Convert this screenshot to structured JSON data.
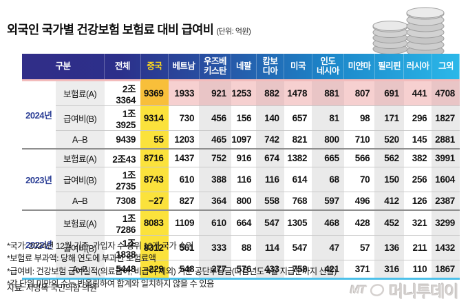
{
  "title": "외국인 국가별 건강보험 보험료 대비 급여비",
  "unit_label": "(단위: 억원)",
  "table": {
    "col_headers": [
      "구분",
      "전체",
      "중국",
      "베트남",
      "우즈베\n키스탄",
      "네팔",
      "캄보\n디아",
      "미국",
      "인도\n네시아",
      "미얀마",
      "필리핀",
      "러시아",
      "그외"
    ],
    "row_labels": [
      "보험료(A)",
      "급여비(B)",
      "A–B"
    ],
    "groups": [
      {
        "year": "2024년",
        "rows": [
          [
            "2조3364",
            "9369",
            "1933",
            "921",
            "1253",
            "882",
            "1478",
            "881",
            "807",
            "691",
            "441",
            "4708"
          ],
          [
            "1조3925",
            "9314",
            "730",
            "456",
            "156",
            "140",
            "657",
            "81",
            "98",
            "171",
            "296",
            "1827"
          ],
          [
            "9439",
            "55",
            "1203",
            "465",
            "1097",
            "742",
            "821",
            "800",
            "710",
            "520",
            "145",
            "2881"
          ]
        ]
      },
      {
        "year": "2023년",
        "rows": [
          [
            "2조43",
            "8716",
            "1437",
            "752",
            "916",
            "674",
            "1382",
            "665",
            "566",
            "562",
            "382",
            "3991"
          ],
          [
            "1조2735",
            "8743",
            "610",
            "388",
            "116",
            "116",
            "614",
            "68",
            "70",
            "150",
            "256",
            "1604"
          ],
          [
            "7308",
            "−27",
            "827",
            "364",
            "800",
            "558",
            "768",
            "597",
            "496",
            "412",
            "126",
            "2387"
          ]
        ]
      },
      {
        "year": "2022년",
        "rows": [
          [
            "1조7286",
            "8083",
            "1109",
            "610",
            "664",
            "547",
            "1305",
            "468",
            "428",
            "452",
            "321",
            "3299"
          ],
          [
            "1조1838",
            "8312",
            "561",
            "333",
            "88",
            "114",
            "547",
            "47",
            "57",
            "136",
            "211",
            "1432"
          ],
          [
            "5448",
            "−229",
            "548",
            "277",
            "576",
            "433",
            "758",
            "421",
            "371",
            "316",
            "110",
            "1867"
          ]
        ]
      }
    ]
  },
  "footnotes": [
    "*국가: 2024년 12월 기준, 가입자 수 상위 10개 국가 순임",
    "*보험료 부과액: 당해 연도에 부과한 보험료액",
    "*급여비: 건강보험 급여실적(의료급여, 비급여 제외) 기준 공단부담금(다음년도 4월 지급분까지 산출)",
    "*각 단위 미만의 수는 반올림하여 합계와 일치하지 않을 수 있음"
  ],
  "source": "자료: 서명옥 국민의힘 의원",
  "logo": {
    "mt": "MT",
    "name": "머니투데이"
  },
  "colors": {
    "header_navy": "#2c2e87",
    "header_cyan": "#2bb8e9",
    "china_header_text": "#ffd91c",
    "china_column_yellow": "#fbe23c",
    "china_pink_overlap_orange": "#f8bf3a",
    "premium_row_pink": "#f6d0d0",
    "stripe_gray": "#eaeaea",
    "label_bg": "#ededed",
    "year_text": "#2c3f96",
    "bottom_line_cyan": "#4cc0e9"
  },
  "chart_data": {
    "type": "table",
    "title": "외국인 국가별 건강보험 보험료 대비 급여비",
    "unit": "억원",
    "columns": [
      "전체",
      "중국",
      "베트남",
      "우즈베키스탄",
      "네팔",
      "캄보디아",
      "미국",
      "인도네시아",
      "미얀마",
      "필리핀",
      "러시아",
      "그외"
    ],
    "rows": [
      {
        "year": "2024년",
        "metric": "보험료(A)",
        "values": [
          "2조3364",
          9369,
          1933,
          921,
          1253,
          882,
          1478,
          881,
          807,
          691,
          441,
          4708
        ]
      },
      {
        "year": "2024년",
        "metric": "급여비(B)",
        "values": [
          "1조3925",
          9314,
          730,
          456,
          156,
          140,
          657,
          81,
          98,
          171,
          296,
          1827
        ]
      },
      {
        "year": "2024년",
        "metric": "A–B",
        "values": [
          9439,
          55,
          1203,
          465,
          1097,
          742,
          821,
          800,
          710,
          520,
          145,
          2881
        ]
      },
      {
        "year": "2023년",
        "metric": "보험료(A)",
        "values": [
          "2조43",
          8716,
          1437,
          752,
          916,
          674,
          1382,
          665,
          566,
          562,
          382,
          3991
        ]
      },
      {
        "year": "2023년",
        "metric": "급여비(B)",
        "values": [
          "1조2735",
          8743,
          610,
          388,
          116,
          116,
          614,
          68,
          70,
          150,
          256,
          1604
        ]
      },
      {
        "year": "2023년",
        "metric": "A–B",
        "values": [
          7308,
          -27,
          827,
          364,
          800,
          558,
          768,
          597,
          496,
          412,
          126,
          2387
        ]
      },
      {
        "year": "2022년",
        "metric": "보험료(A)",
        "values": [
          "1조7286",
          8083,
          1109,
          610,
          664,
          547,
          1305,
          468,
          428,
          452,
          321,
          3299
        ]
      },
      {
        "year": "2022년",
        "metric": "급여비(B)",
        "values": [
          "1조1838",
          8312,
          561,
          333,
          88,
          114,
          547,
          47,
          57,
          136,
          211,
          1432
        ]
      },
      {
        "year": "2022년",
        "metric": "A–B",
        "values": [
          5448,
          -229,
          548,
          277,
          576,
          433,
          758,
          421,
          371,
          316,
          110,
          1867
        ]
      }
    ]
  }
}
